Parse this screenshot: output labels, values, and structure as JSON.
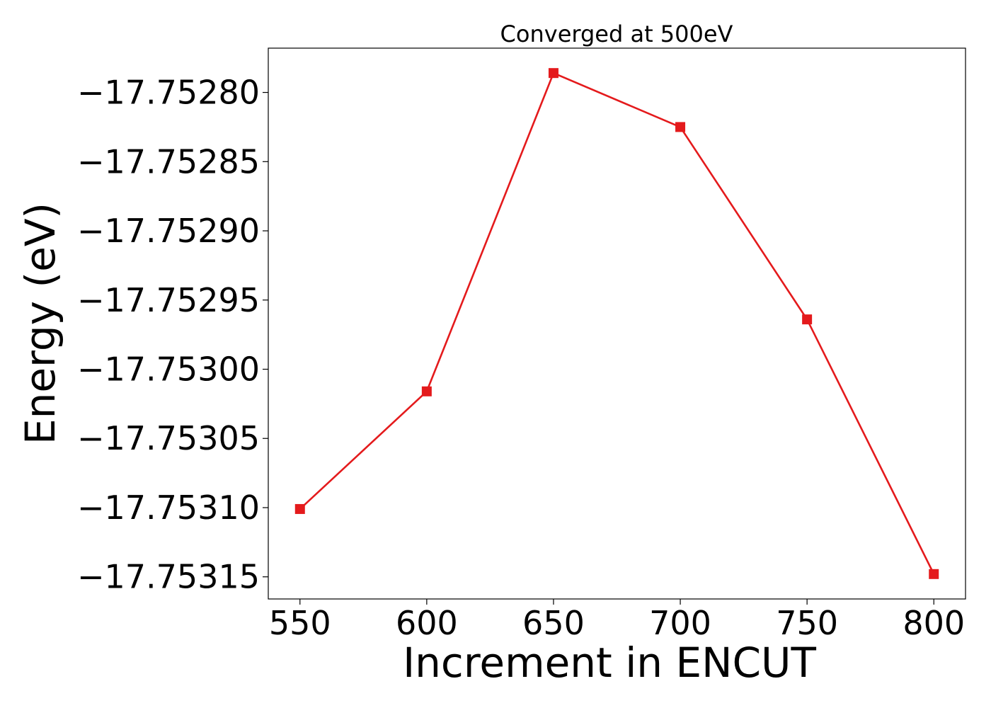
{
  "chart_data": {
    "type": "line",
    "title": "Converged at 500eV",
    "xlabel": "Increment in ENCUT",
    "ylabel": "Energy (eV)",
    "x": [
      550,
      600,
      650,
      700,
      750,
      800
    ],
    "series": [
      {
        "values": [
          -17.753101,
          -17.753016,
          -17.752786,
          -17.752825,
          -17.752964,
          -17.753148
        ],
        "color": "#e41a1c",
        "marker": "square"
      }
    ],
    "xlim": [
      537.5,
      812.5
    ],
    "ylim": [
      -17.753166,
      -17.752768
    ],
    "xticks": [
      550,
      600,
      650,
      700,
      750,
      800
    ],
    "xtick_labels": [
      "550",
      "600",
      "650",
      "700",
      "750",
      "800"
    ],
    "yticks": [
      -17.7528,
      -17.75285,
      -17.7529,
      -17.75295,
      -17.753,
      -17.75305,
      -17.7531,
      -17.75315
    ],
    "ytick_labels": [
      "−17.75280",
      "−17.75285",
      "−17.75290",
      "−17.75295",
      "−17.75300",
      "−17.75305",
      "−17.75310",
      "−17.75315"
    ],
    "grid": false,
    "legend": false
  }
}
